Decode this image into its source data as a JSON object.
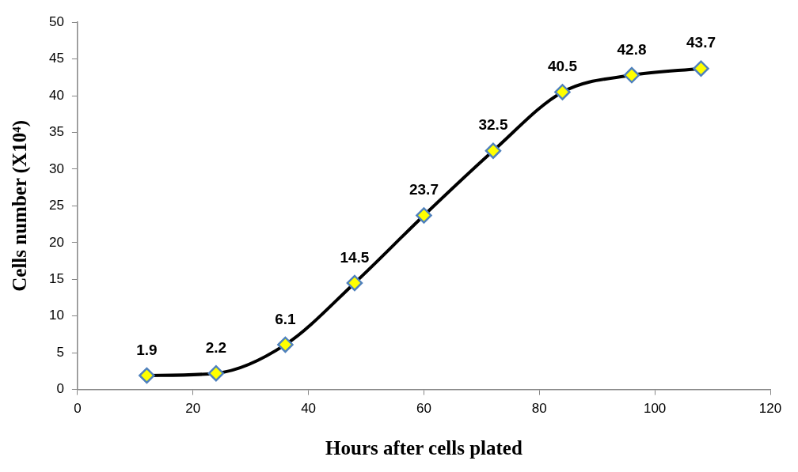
{
  "chart_data": {
    "type": "line",
    "xlabel": "Hours after cells plated",
    "ylabel": "Cells number (X10⁴)",
    "x": [
      12,
      24,
      36,
      48,
      60,
      72,
      84,
      96,
      108
    ],
    "series": [
      {
        "color": "#000000",
        "values": [
          1.9,
          2.2,
          6.1,
          14.5,
          23.7,
          32.5,
          40.5,
          42.8,
          43.7
        ]
      }
    ],
    "xlim": [
      0,
      120
    ],
    "xticks": [
      0,
      20,
      40,
      60,
      80,
      100,
      120
    ],
    "ylim": [
      0,
      50
    ],
    "yticks": [
      0,
      5,
      10,
      15,
      20,
      25,
      30,
      35,
      40,
      45,
      50
    ],
    "grid": false,
    "legend": false,
    "marker": "diamond",
    "line_style": "solid",
    "data_labels": true
  }
}
